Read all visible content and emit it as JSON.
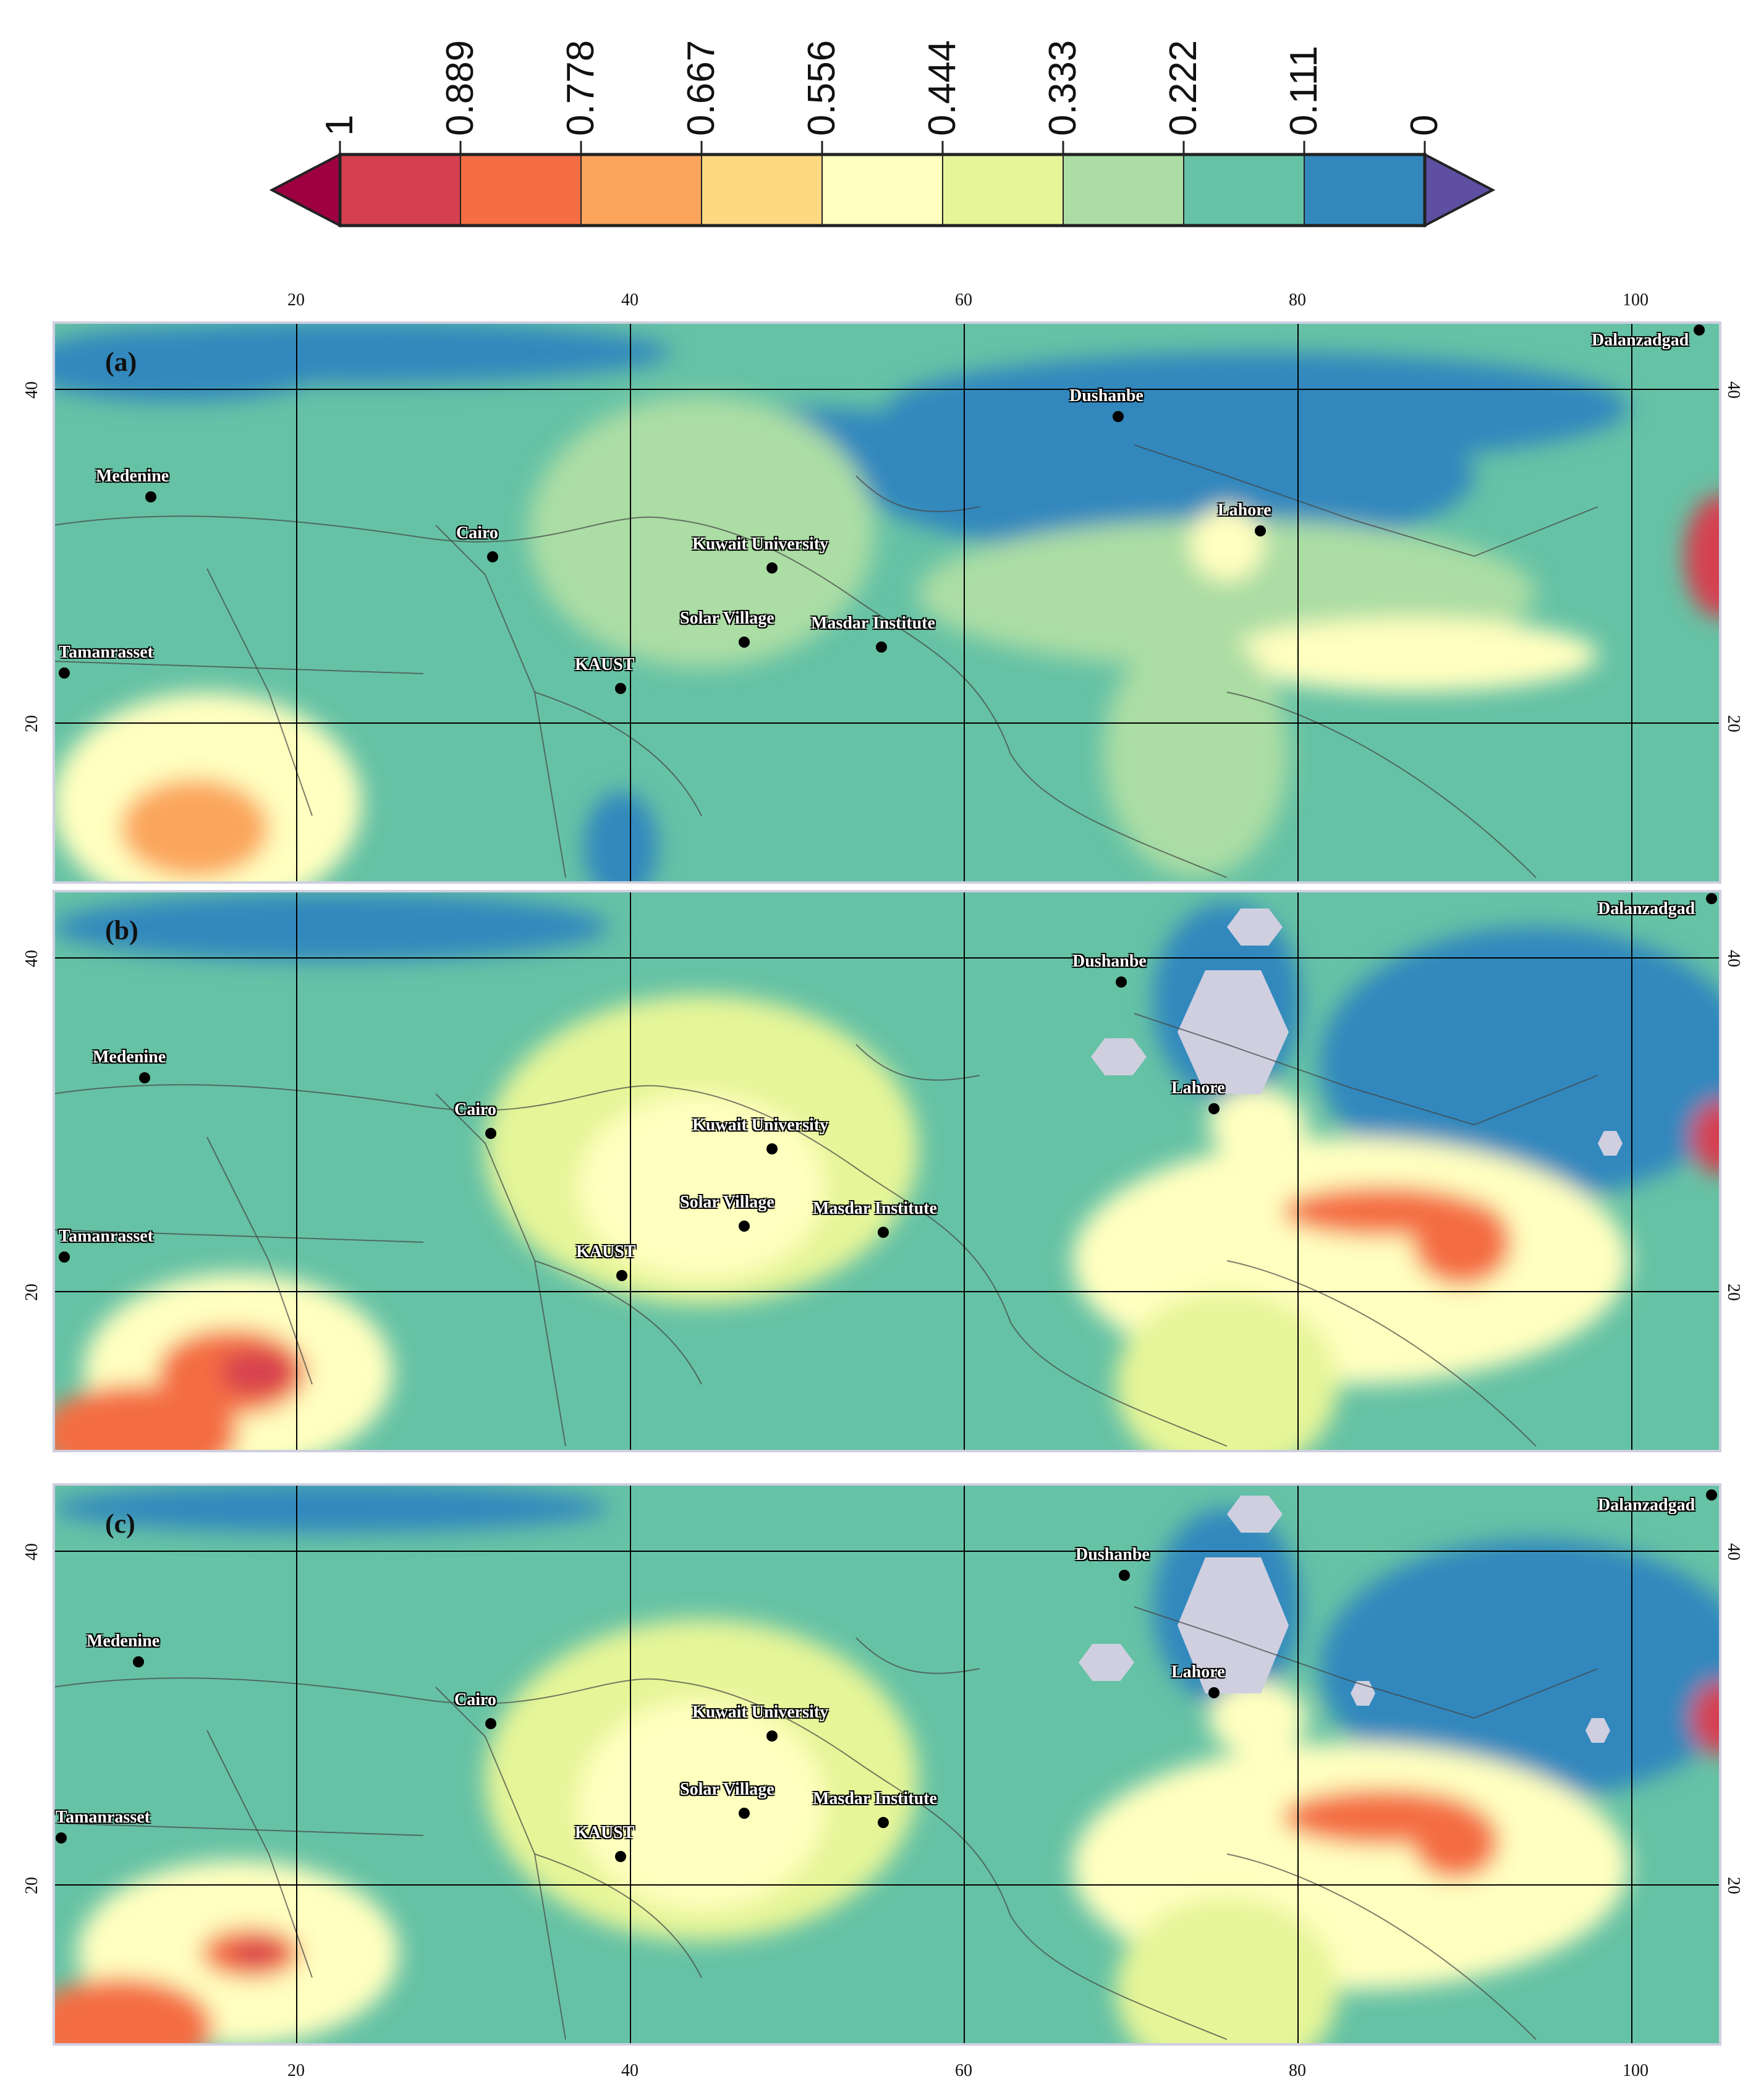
{
  "colorbar": {
    "ticks": [
      "1",
      "0.889",
      "0.778",
      "0.667",
      "0.556",
      "0.444",
      "0.333",
      "0.222",
      "0.111",
      "0"
    ],
    "colors": [
      "#d5404f",
      "#f46d43",
      "#fba55c",
      "#fed982",
      "#ffffbf",
      "#e6f598",
      "#abdda4",
      "#66c2a5",
      "#3288bd"
    ],
    "under_color": "#9e0142",
    "over_color": "#5e4fa2"
  },
  "axes": {
    "lon_ticks": [
      "20",
      "40",
      "60",
      "80",
      "100"
    ],
    "lat_ticks": [
      "40",
      "20"
    ]
  },
  "panels": [
    {
      "letter": "(a)"
    },
    {
      "letter": "(b)"
    },
    {
      "letter": "(c)"
    }
  ],
  "cities": [
    "Dalanzadgad",
    "Dushanbe",
    "Medenine",
    "Lahore",
    "Cairo",
    "Kuwait University",
    "Solar Village",
    "Masdar Institute",
    "Tamanrasset",
    "KAUST"
  ],
  "palette": {
    "missing": "#cfcfe0",
    "border": "#444444",
    "grid": "#000000"
  }
}
